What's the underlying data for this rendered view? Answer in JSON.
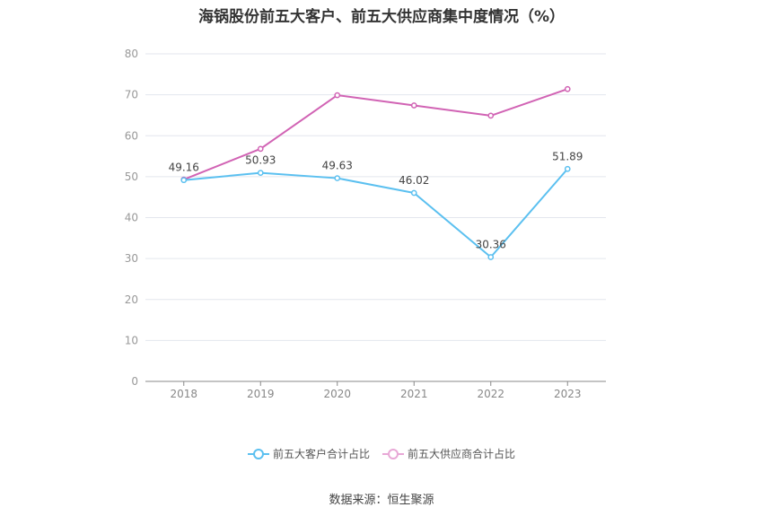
{
  "chart_data": {
    "type": "line",
    "title": "海锅股份前五大客户、前五大供应商集中度情况（%）",
    "categories": [
      "2018",
      "2019",
      "2020",
      "2021",
      "2022",
      "2023"
    ],
    "ylim": [
      0,
      80
    ],
    "yticks": [
      "0",
      "10",
      "20",
      "30",
      "40",
      "50",
      "60",
      "70",
      "80"
    ],
    "grid": true,
    "legend_position": "bottom",
    "series": [
      {
        "name": "前五大客户合计占比",
        "color": "#5bc0f0",
        "values": [
          49.16,
          50.93,
          49.63,
          46.02,
          30.36,
          51.89
        ],
        "labels": [
          "49.16",
          "50.93",
          "49.63",
          "46.02",
          "30.36",
          "51.89"
        ]
      },
      {
        "name": "前五大供应商合计占比",
        "color": "#d163b4",
        "values": [
          49.3,
          56.8,
          69.9,
          67.4,
          64.9,
          71.4
        ]
      }
    ]
  },
  "source": "数据来源：恒生聚源"
}
